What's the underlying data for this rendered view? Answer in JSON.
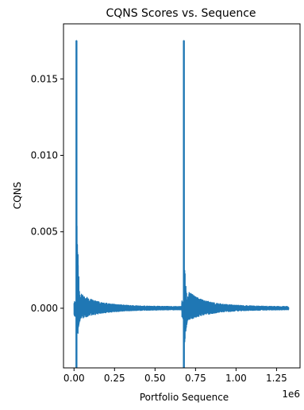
{
  "chart_data": {
    "type": "line",
    "title": "CQNS Scores vs. Sequence",
    "xlabel": "Portfolio Sequence",
    "ylabel": "CQNS",
    "x_offset_label": "1e6",
    "x_scale": 1000000,
    "xlim": [
      -65000,
      1395000
    ],
    "ylim": [
      -0.0039,
      0.0186
    ],
    "x_ticks": [
      0,
      250000,
      500000,
      750000,
      1000000,
      1250000
    ],
    "x_tick_labels": [
      "0.00",
      "0.25",
      "0.50",
      "0.75",
      "1.00",
      "1.25"
    ],
    "y_ticks": [
      0.0,
      0.005,
      0.01,
      0.015
    ],
    "y_tick_labels": [
      "0.000",
      "0.005",
      "0.010",
      "0.015"
    ],
    "grid": false,
    "series": [
      {
        "color": "#1f77b4",
        "segments": [
          {
            "x_start": 0,
            "x_end": 665000,
            "spike_x": 15000,
            "peak": 0.0175,
            "trough": -0.0039,
            "secondary_peak": 0.0065,
            "secondary_trough": -0.0028,
            "baseline": 0.0,
            "band_start": 0.0006,
            "band_end": 8e-05
          },
          {
            "x_start": 665000,
            "x_end": 1325000,
            "spike_x": 678000,
            "peak": 0.0175,
            "trough": -0.0039,
            "secondary_peak": 0.0028,
            "secondary_trough": -0.0025,
            "baseline": 0.0,
            "band_start": 0.0007,
            "band_end": 8e-05
          }
        ]
      }
    ]
  }
}
